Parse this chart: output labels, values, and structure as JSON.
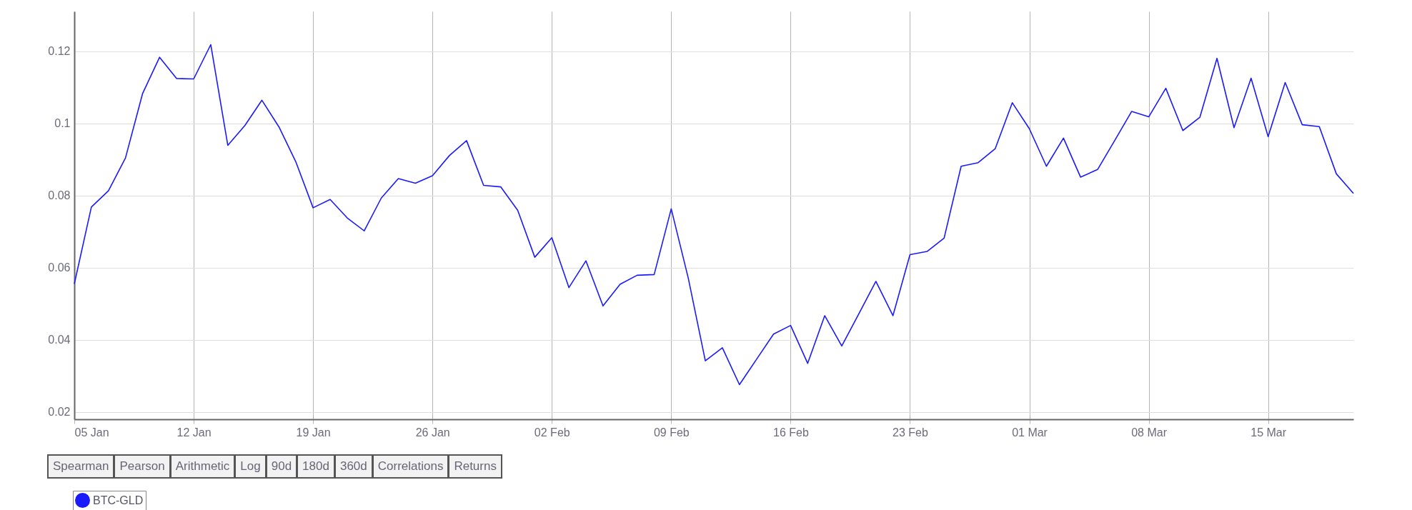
{
  "chart_data": {
    "type": "line",
    "x": [
      "--01-05",
      "--01-06",
      "--01-07",
      "--01-08",
      "--01-09",
      "--01-10",
      "--01-11",
      "--01-12",
      "--01-13",
      "--01-14",
      "--01-15",
      "--01-16",
      "--01-17",
      "--01-18",
      "--01-19",
      "--01-20",
      "--01-21",
      "--01-22",
      "--01-23",
      "--01-24",
      "--01-25",
      "--01-26",
      "--01-27",
      "--01-28",
      "--01-29",
      "--01-30",
      "--01-31",
      "--02-01",
      "--02-02",
      "--02-03",
      "--02-04",
      "--02-05",
      "--02-06",
      "--02-07",
      "--02-08",
      "--02-09",
      "--02-10",
      "--02-11",
      "--02-12",
      "--02-13",
      "--02-14",
      "--02-15",
      "--02-16",
      "--02-17",
      "--02-18",
      "--02-19",
      "--02-20",
      "--02-21",
      "--02-22",
      "--02-23",
      "--02-24",
      "--02-25",
      "--02-26",
      "--02-27",
      "--02-28",
      "--02-29",
      "--03-01",
      "--03-02",
      "--03-03",
      "--03-04",
      "--03-05",
      "--03-06",
      "--03-07",
      "--03-08",
      "--03-09",
      "--03-10",
      "--03-11",
      "--03-12",
      "--03-13",
      "--03-14",
      "--03-15",
      "--03-16",
      "--03-17",
      "--03-18",
      "--03-19",
      "--03-20"
    ],
    "series": [
      {
        "name": "BTC-GLD",
        "color": "#1a1aff",
        "values": [
          0.0555,
          0.0768,
          0.0813,
          0.0904,
          0.1082,
          0.1183,
          0.1124,
          0.1123,
          0.1218,
          0.0939,
          0.0994,
          0.1064,
          0.099,
          0.0892,
          0.0766,
          0.0789,
          0.0738,
          0.0702,
          0.0793,
          0.0847,
          0.0834,
          0.0855,
          0.0911,
          0.0952,
          0.0828,
          0.0824,
          0.0759,
          0.0629,
          0.0683,
          0.0545,
          0.0619,
          0.0494,
          0.0554,
          0.0579,
          0.0581,
          0.0763,
          0.0571,
          0.0342,
          0.0378,
          0.0276,
          0.0346,
          0.0416,
          0.044,
          0.0335,
          0.0467,
          0.0383,
          0.0472,
          0.0562,
          0.0467,
          0.0636,
          0.0645,
          0.0682,
          0.0881,
          0.0891,
          0.093,
          0.1057,
          0.0985,
          0.0881,
          0.0959,
          0.0851,
          0.0872,
          0.0952,
          0.1033,
          0.1018,
          0.1097,
          0.098,
          0.1017,
          0.118,
          0.0988,
          0.1125,
          0.0963,
          0.1113,
          0.0996,
          0.0991,
          0.086,
          0.0806
        ]
      }
    ],
    "xlim": [
      "--01-05",
      "--03-20"
    ],
    "xticks": [
      {
        "value": "--01-05",
        "label": "05 Jan"
      },
      {
        "value": "--01-12",
        "label": "12 Jan"
      },
      {
        "value": "--01-19",
        "label": "19 Jan"
      },
      {
        "value": "--01-26",
        "label": "26 Jan"
      },
      {
        "value": "--02-02",
        "label": "02 Feb"
      },
      {
        "value": "--02-09",
        "label": "09 Feb"
      },
      {
        "value": "--02-16",
        "label": "16 Feb"
      },
      {
        "value": "--02-23",
        "label": "23 Feb"
      },
      {
        "value": "--03-01",
        "label": "01 Mar"
      },
      {
        "value": "--03-08",
        "label": "08 Mar"
      },
      {
        "value": "--03-15",
        "label": "15 Mar"
      }
    ],
    "ylim": [
      0.018,
      0.131
    ],
    "yticks": [
      0.02,
      0.04,
      0.06,
      0.08,
      0.1,
      0.12
    ],
    "grid": true,
    "legend": "bottom",
    "annotations": [
      "Spearman",
      "Pearson",
      "Arithmetic",
      "Log",
      "90d",
      "180d",
      "360d",
      "Correlations",
      "Returns"
    ]
  }
}
